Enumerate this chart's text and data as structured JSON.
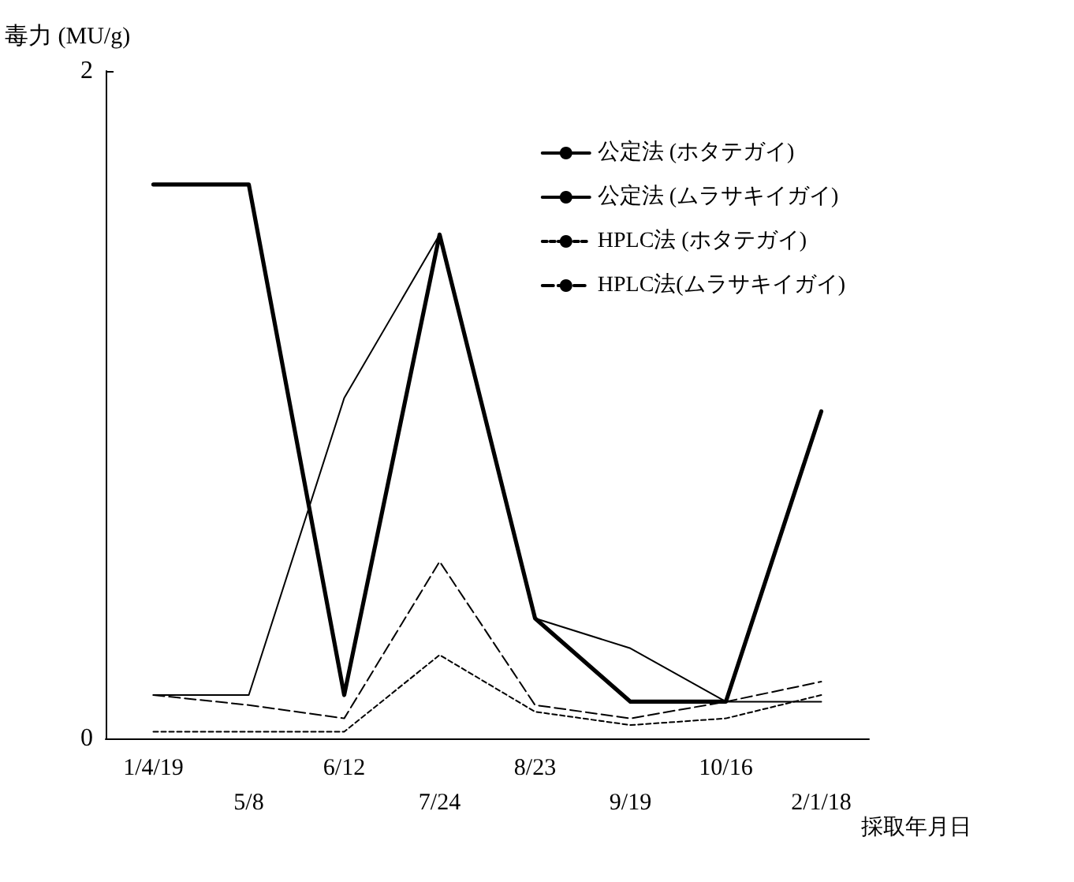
{
  "chart_data": {
    "type": "line",
    "ylabel": "毒力 (MU/g)",
    "xlabel": "採取年月日",
    "categories": [
      "1/4/19",
      "5/8",
      "6/12",
      "7/24",
      "8/23",
      "9/19",
      "10/16",
      "2/1/18"
    ],
    "ylim": [
      0,
      2
    ],
    "yticks": [
      0,
      2
    ],
    "grid": false,
    "legend": "top right",
    "marker": "none",
    "series": [
      {
        "name": "公定法 (ホタテガイ)",
        "color": "#000000",
        "line_style": "solid",
        "values": [
          0.13,
          0.13,
          1.02,
          1.51,
          0.36,
          0.27,
          0.11,
          0.11
        ]
      },
      {
        "name": "公定法 (ムラサキイガイ)",
        "color": "#000000",
        "line_style": "solid",
        "values": [
          1.66,
          1.66,
          0.13,
          1.51,
          0.36,
          0.11,
          0.11,
          0.98
        ]
      },
      {
        "name": "HPLC法 (ホタテガイ)",
        "color": "#000000",
        "line_style": "dotted",
        "values": [
          0.02,
          0.02,
          0.02,
          0.25,
          0.08,
          0.04,
          0.06,
          0.13
        ]
      },
      {
        "name": "HPLC法(ムラサキイガイ)",
        "color": "#000000",
        "line_style": "dashed",
        "values": [
          0.13,
          0.1,
          0.06,
          0.53,
          0.1,
          0.06,
          0.11,
          0.17
        ]
      }
    ]
  }
}
